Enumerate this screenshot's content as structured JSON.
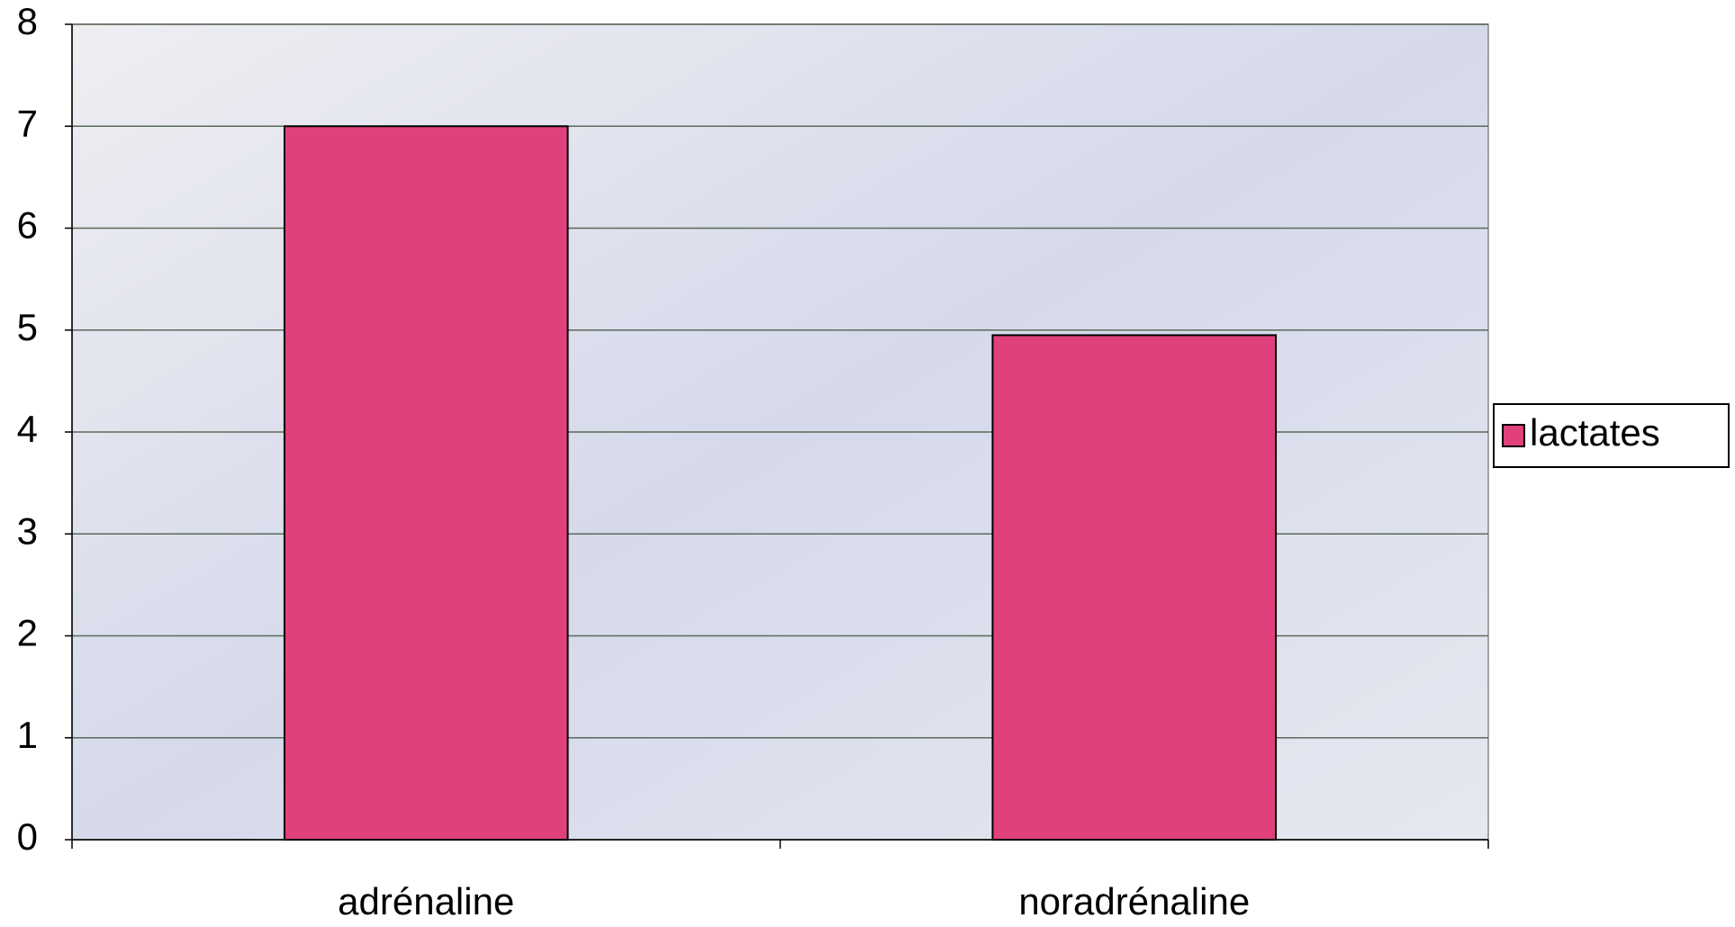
{
  "chart_data": {
    "type": "bar",
    "categories": [
      "adrénaline",
      "noradrénaline"
    ],
    "series": [
      {
        "name": "lactates",
        "color": "#e0407c",
        "values": [
          7,
          4.95
        ]
      }
    ],
    "ylim": [
      0,
      8
    ],
    "yticks": [
      0,
      1,
      2,
      3,
      4,
      5,
      6,
      7,
      8
    ],
    "grid": true,
    "legend": "right"
  }
}
